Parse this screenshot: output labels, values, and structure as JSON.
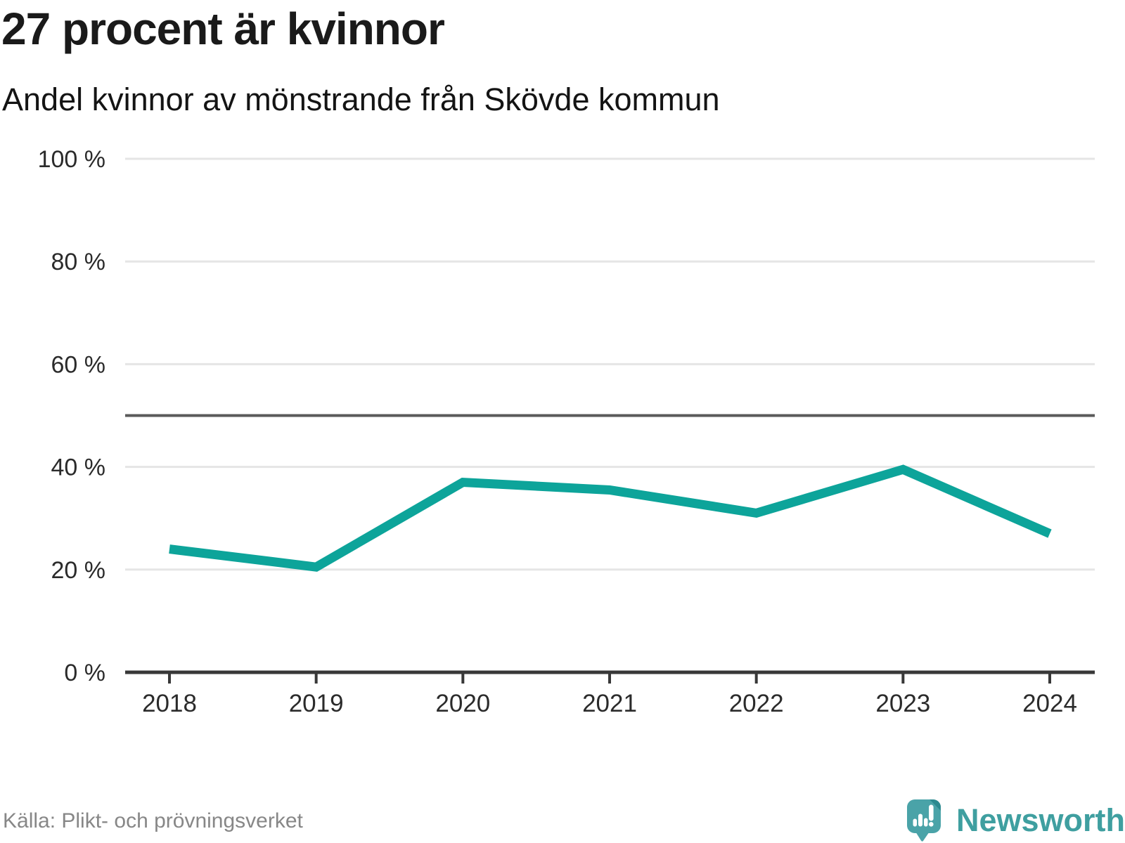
{
  "header": {
    "title": "27 procent är kvinnor",
    "subtitle": "Andel kvinnor av mönstrande från Skövde kommun"
  },
  "footer": {
    "source": "Källa: Plikt- och prövningsverket",
    "brand": "Newsworthy"
  },
  "colors": {
    "line": "#0da49a",
    "grid": "#e5e5e5",
    "reference_line": "#5a5a5a",
    "axis": "#383838",
    "tick_text": "#2b2b2b",
    "muted_text": "#878787",
    "brand_teal": "#3f9fa0",
    "logo_fill": "#4aa3a8",
    "logo_fold": "#2d8a90"
  },
  "icons": {
    "brand_icon": "newsworthy-speech-bubble-bar-chart"
  },
  "chart_data": {
    "type": "line",
    "title": "27 procent är kvinnor",
    "subtitle": "Andel kvinnor av mönstrande från Skövde kommun",
    "categories": [
      "2018",
      "2019",
      "2020",
      "2021",
      "2022",
      "2023",
      "2024"
    ],
    "series": [
      {
        "name": "Andel kvinnor av mönstrande",
        "values": [
          24,
          20.5,
          37,
          35.5,
          31,
          39.5,
          27
        ]
      }
    ],
    "unit": "%",
    "ylim": [
      0,
      100
    ],
    "yticks": [
      0,
      20,
      40,
      60,
      80,
      100
    ],
    "ytick_labels": [
      "0 %",
      "20 %",
      "40 %",
      "60 %",
      "80 %",
      "100 %"
    ],
    "reference_line": 50,
    "grid": "horizontal",
    "legend": "none",
    "source": "Källa: Plikt- och prövningsverket"
  }
}
